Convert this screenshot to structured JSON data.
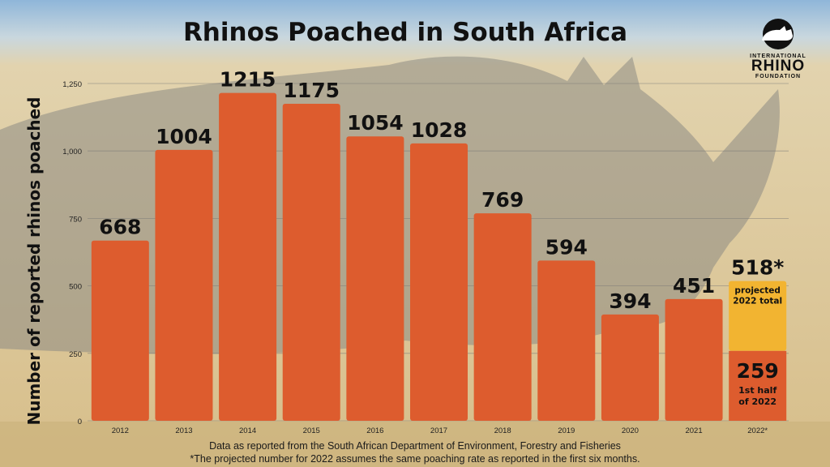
{
  "logo": {
    "line1": "INTERNATIONAL",
    "line2": "RHINO",
    "line3": "FOUNDATION"
  },
  "footer": {
    "line1": "Data as reported from the South African Department of Environment, Forestry and Fisheries",
    "line2": "*The projected number for 2022 assumes the same poaching rate as reported in the first six months."
  },
  "colors": {
    "bar": "#DD5C2E",
    "projected": "#F2B431",
    "sky": "#A9C7E0",
    "grass": "#D9BF86"
  },
  "chart_data": {
    "type": "bar",
    "title": "Rhinos Poached in South Africa",
    "ylabel": "Number of reported rhinos poached",
    "xlabel": "",
    "ylim": [
      0,
      1250
    ],
    "yticks": [
      "0",
      "250",
      "500",
      "750",
      "1,000",
      "1,250"
    ],
    "ytick_values": [
      0,
      250,
      500,
      750,
      1000,
      1250
    ],
    "grid": true,
    "categories": [
      "2012",
      "2013",
      "2014",
      "2015",
      "2016",
      "2017",
      "2018",
      "2019",
      "2020",
      "2021",
      "2022*"
    ],
    "values": [
      668,
      1004,
      1215,
      1175,
      1054,
      1028,
      769,
      594,
      394,
      451,
      259
    ],
    "value_labels": [
      "668",
      "1004",
      "1215",
      "1175",
      "1054",
      "1028",
      "769",
      "594",
      "394",
      "451",
      "259"
    ],
    "projected_2022": {
      "total": 518,
      "total_label": "518*",
      "total_caption_1": "projected",
      "total_caption_2": "2022 total",
      "first_half": 259,
      "first_half_label": "259",
      "first_half_caption_1": "1st half",
      "first_half_caption_2": "of 2022"
    }
  }
}
